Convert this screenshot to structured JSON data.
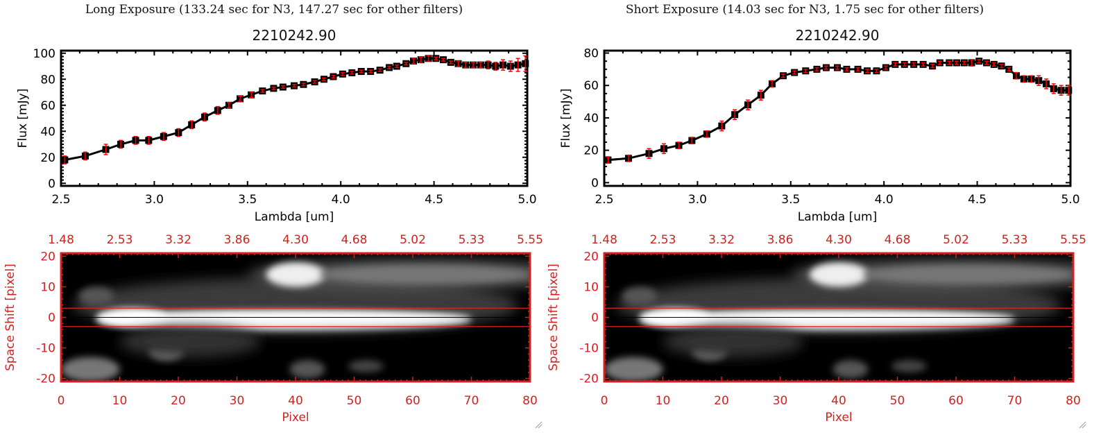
{
  "panels": [
    {
      "exposure_title": "Long Exposure (133.24 sec for N3, 147.27 sec for other filters)",
      "spectrum": {
        "type": "line",
        "title": "2210242.90",
        "xlabel": "Lambda [um]",
        "ylabel": "Flux [mJy]",
        "xlim": [
          2.5,
          5.0
        ],
        "ylim": [
          -2,
          102
        ],
        "xticks": [
          "2.5",
          "3.0",
          "3.5",
          "4.0",
          "4.5",
          "5.0"
        ],
        "yticks": [
          "0",
          "20",
          "40",
          "60",
          "80",
          "100"
        ],
        "x": [
          2.52,
          2.63,
          2.74,
          2.82,
          2.9,
          2.97,
          3.05,
          3.13,
          3.2,
          3.27,
          3.34,
          3.4,
          3.46,
          3.52,
          3.58,
          3.64,
          3.69,
          3.75,
          3.8,
          3.86,
          3.91,
          3.96,
          4.01,
          4.06,
          4.11,
          4.16,
          4.21,
          4.26,
          4.3,
          4.35,
          4.39,
          4.43,
          4.47,
          4.51,
          4.55,
          4.59,
          4.63,
          4.67,
          4.71,
          4.75,
          4.79,
          4.83,
          4.87,
          4.91,
          4.95,
          4.99
        ],
        "y": [
          18,
          21,
          26,
          30,
          33,
          33,
          36,
          39,
          45,
          51,
          56,
          60,
          65,
          68,
          71,
          73,
          74,
          75,
          76,
          78,
          80,
          82,
          84,
          85,
          86,
          86,
          87,
          89,
          90,
          92,
          94,
          95,
          96,
          96,
          95,
          93,
          92,
          91,
          91,
          91,
          91,
          90,
          91,
          90,
          91,
          92
        ],
        "yerr": [
          3,
          3,
          4,
          3,
          3,
          3,
          3,
          3,
          3,
          3,
          3,
          2,
          2,
          2,
          1,
          1,
          1,
          1,
          1,
          1,
          1,
          1,
          1,
          1,
          1,
          1,
          1,
          1,
          1,
          1,
          2,
          2,
          2,
          1,
          1,
          1,
          2,
          2,
          2,
          2,
          3,
          3,
          4,
          4,
          5,
          6
        ],
        "line_color": "#000000",
        "errorbar_color": "#ff0000"
      },
      "image": {
        "type": "heatmap",
        "xlabel": "Pixel",
        "ylabel": "Space Shift [pixel]",
        "xlim": [
          0,
          80
        ],
        "ylim": [
          -21,
          21
        ],
        "xticks": [
          "0",
          "10",
          "20",
          "30",
          "40",
          "50",
          "60",
          "70",
          "80"
        ],
        "yticks": [
          "-20",
          "-10",
          "0",
          "10",
          "20"
        ],
        "top_xticks": [
          "1.48",
          "2.53",
          "3.32",
          "3.86",
          "4.30",
          "4.68",
          "5.02",
          "5.33",
          "5.55"
        ],
        "aperture_lines": [
          3,
          -3
        ],
        "center_line": 0,
        "axis_color": "#d42020",
        "colormap": "grayscale"
      }
    },
    {
      "exposure_title": "Short Exposure (14.03 sec for N3, 1.75 sec for other filters)",
      "spectrum": {
        "type": "line",
        "title": "2210242.90",
        "xlabel": "Lambda [um]",
        "ylabel": "Flux [mJy]",
        "xlim": [
          2.5,
          5.0
        ],
        "ylim": [
          -2,
          81.5
        ],
        "xticks": [
          "2.5",
          "3.0",
          "3.5",
          "4.0",
          "4.5",
          "5.0"
        ],
        "yticks": [
          "0",
          "20",
          "40",
          "60",
          "80"
        ],
        "x": [
          2.52,
          2.63,
          2.74,
          2.82,
          2.9,
          2.97,
          3.05,
          3.13,
          3.2,
          3.27,
          3.34,
          3.4,
          3.46,
          3.52,
          3.58,
          3.64,
          3.69,
          3.75,
          3.8,
          3.86,
          3.91,
          3.96,
          4.01,
          4.06,
          4.11,
          4.16,
          4.21,
          4.26,
          4.3,
          4.35,
          4.39,
          4.43,
          4.47,
          4.51,
          4.55,
          4.59,
          4.63,
          4.67,
          4.71,
          4.75,
          4.79,
          4.83,
          4.87,
          4.91,
          4.95,
          4.99
        ],
        "y": [
          14,
          15,
          18,
          21,
          23,
          26,
          30,
          35,
          42,
          48,
          54,
          61,
          66,
          68,
          69,
          70,
          71,
          71,
          70,
          70,
          69,
          69,
          71,
          73,
          73,
          73,
          73,
          72,
          74,
          74,
          74,
          74,
          74,
          75,
          74,
          73,
          72,
          70,
          66,
          64,
          64,
          63,
          61,
          58,
          57,
          57
        ],
        "yerr": [
          2,
          2,
          3,
          3,
          2,
          2,
          2,
          3,
          3,
          3,
          3,
          2,
          1,
          1,
          1,
          1,
          1,
          1,
          1,
          1,
          1,
          1,
          1,
          1,
          1,
          1,
          1,
          1,
          1,
          1,
          1,
          1,
          2,
          1,
          1,
          1,
          1,
          1,
          2,
          2,
          2,
          3,
          3,
          3,
          3,
          3
        ],
        "line_color": "#000000",
        "errorbar_color": "#ff0000"
      },
      "image": {
        "type": "heatmap",
        "xlabel": "Pixel",
        "ylabel": "Space Shift [pixel]",
        "xlim": [
          0,
          80
        ],
        "ylim": [
          -21,
          21
        ],
        "xticks": [
          "0",
          "10",
          "20",
          "30",
          "40",
          "50",
          "60",
          "70",
          "80"
        ],
        "yticks": [
          "-20",
          "-10",
          "0",
          "10",
          "20"
        ],
        "top_xticks": [
          "1.48",
          "2.53",
          "3.32",
          "3.86",
          "4.30",
          "4.68",
          "5.02",
          "5.33",
          "5.55"
        ],
        "aperture_lines": [
          3,
          -3
        ],
        "center_line": 0,
        "axis_color": "#d42020",
        "colormap": "grayscale"
      }
    }
  ]
}
